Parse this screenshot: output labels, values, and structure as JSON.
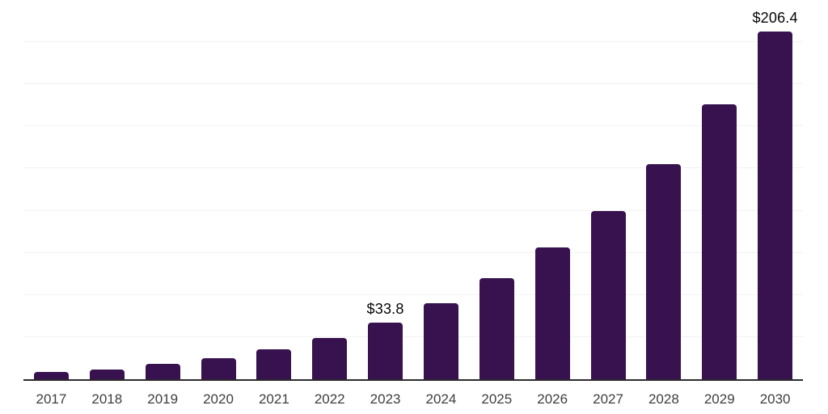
{
  "chart_data": {
    "type": "bar",
    "title": "",
    "xlabel": "",
    "ylabel": "",
    "categories": [
      "2017",
      "2018",
      "2019",
      "2020",
      "2021",
      "2022",
      "2023",
      "2024",
      "2025",
      "2026",
      "2027",
      "2028",
      "2029",
      "2030"
    ],
    "values": [
      4.4,
      6.0,
      9.0,
      12.6,
      17.7,
      24.4,
      33.8,
      45.1,
      59.9,
      78.3,
      99.7,
      127.8,
      163.1,
      206.4
    ],
    "value_labels": {
      "2023": "$33.8",
      "2030": "$206.4"
    },
    "ylim": [
      0,
      225
    ],
    "grid_step": 25,
    "grid": true,
    "legend": false,
    "style": {
      "bar_color": "#37124e",
      "grid_color": "#f2f2f2",
      "axis_color": "#2b2b2b",
      "tick_color": "#3e3e3e",
      "value_label_color": "#050505",
      "background": "#ffffff"
    }
  }
}
